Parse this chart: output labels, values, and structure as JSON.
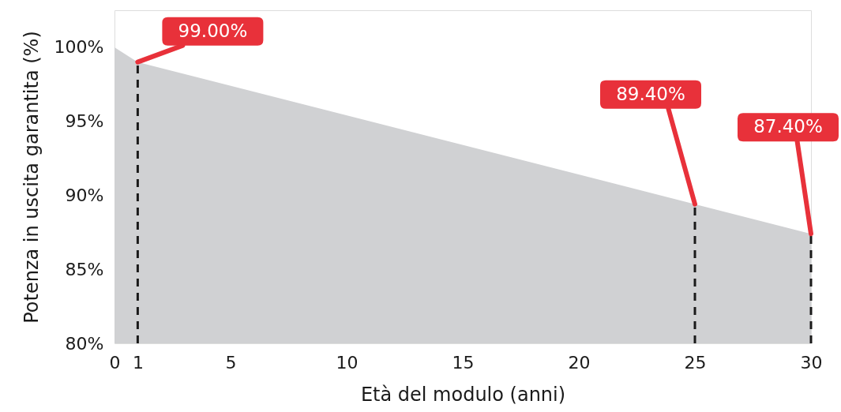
{
  "chart_data": {
    "type": "area",
    "xlabel": "Età del modulo (anni)",
    "ylabel": "Potenza in uscita garantita (%)",
    "x": [
      0,
      1,
      25,
      30
    ],
    "series": [
      {
        "color": "#d0d1d3",
        "values": [
          100,
          99,
          89.4,
          87.4
        ]
      }
    ],
    "xlim": [
      0,
      30
    ],
    "xticks": [
      0,
      1,
      5,
      10,
      15,
      20,
      25,
      30
    ],
    "ylim": [
      80,
      102.5
    ],
    "yticks": [
      {
        "value": 80,
        "label": "80%"
      },
      {
        "value": 85,
        "label": "85%"
      },
      {
        "value": 90,
        "label": "90%"
      },
      {
        "value": 95,
        "label": "95%"
      },
      {
        "value": 100,
        "label": "100%"
      }
    ],
    "ref_lines": [
      {
        "axis": "x",
        "value": 1,
        "color": "#1a1a1a",
        "line_style": "dashed"
      },
      {
        "axis": "x",
        "value": 25,
        "color": "#1a1a1a",
        "line_style": "dashed"
      },
      {
        "axis": "x",
        "value": 30,
        "color": "#1a1a1a",
        "line_style": "dashed"
      }
    ],
    "annotations": [
      {
        "text": "99.00%",
        "x": 1,
        "y": 99
      },
      {
        "text": "89.40%",
        "x": 25,
        "y": 89.4
      },
      {
        "text": "87.40%",
        "x": 30,
        "y": 87.4
      }
    ],
    "grid": false
  }
}
